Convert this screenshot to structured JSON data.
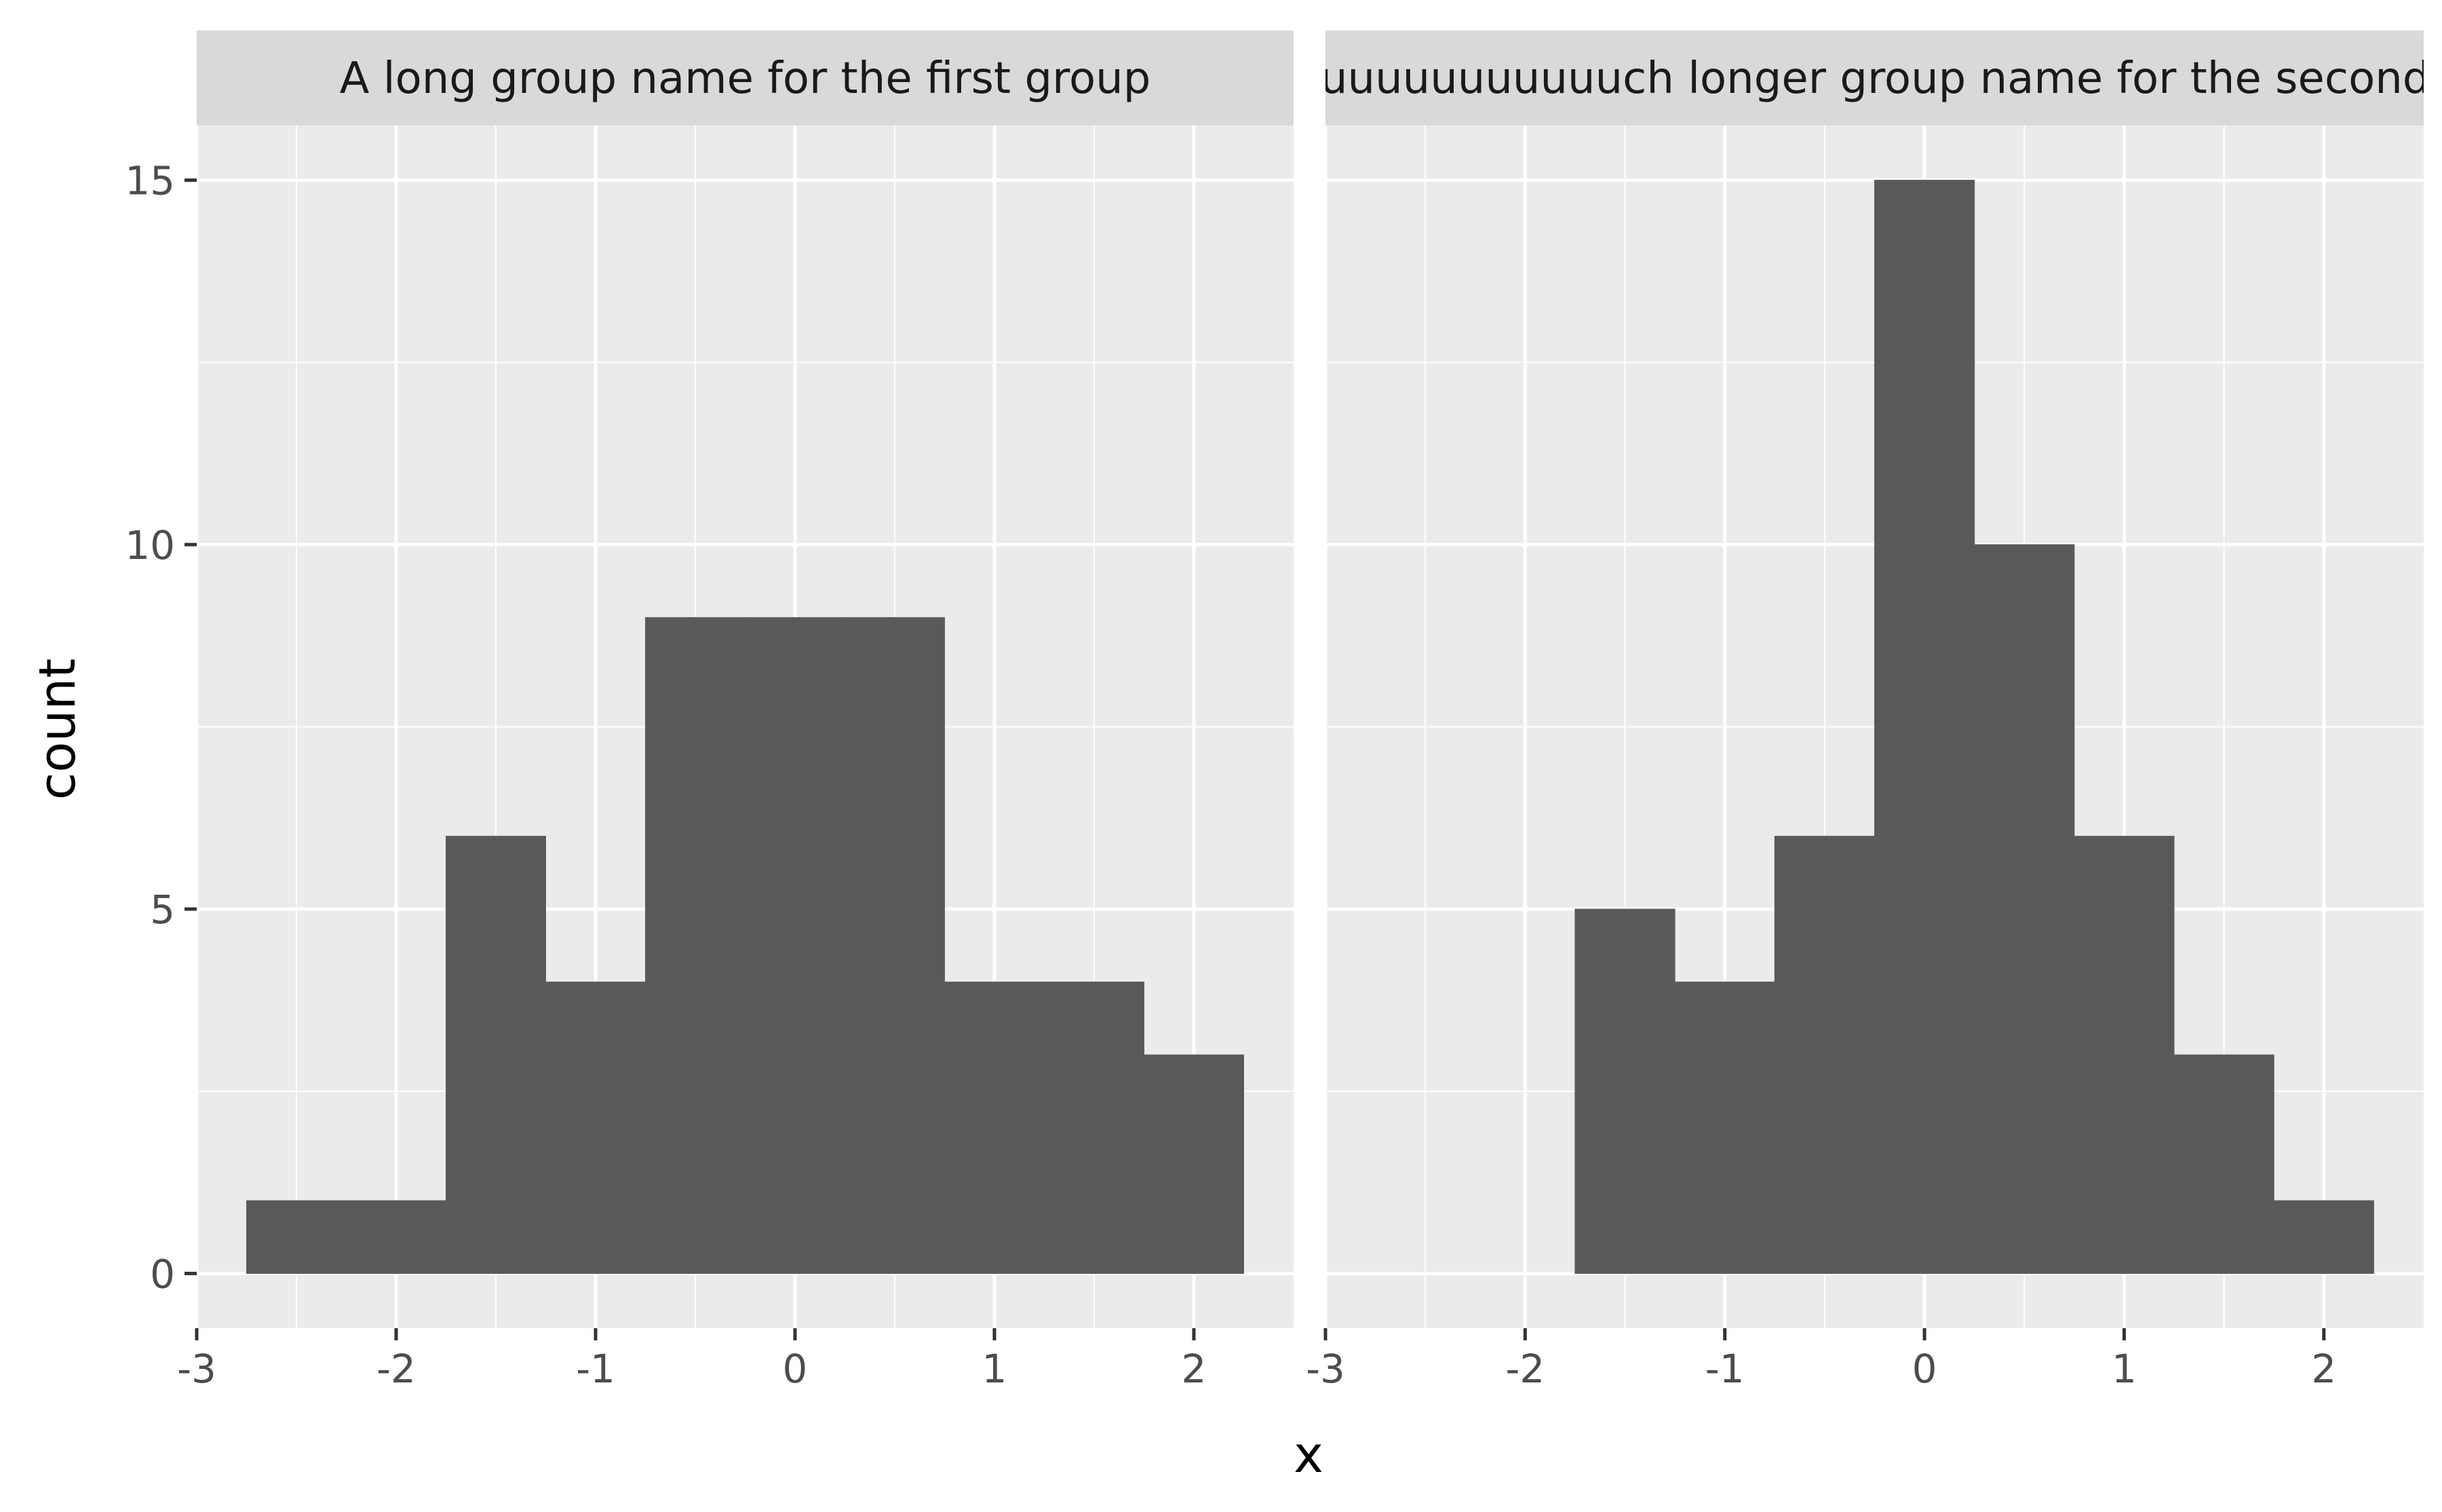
{
  "chart_data": {
    "type": "bar",
    "xlabel": "x",
    "ylabel": "count",
    "y_ticks": [
      0,
      5,
      10,
      15
    ],
    "y_tick_labels": [
      "0",
      "5",
      "10",
      "15"
    ],
    "x_ticks": [
      -3,
      -2,
      -1,
      0,
      1,
      2
    ],
    "x_tick_labels": [
      "-3",
      "-2",
      "-1",
      "0",
      "1",
      "2"
    ],
    "xlim": [
      -3,
      2.5
    ],
    "ylim": [
      -0.75,
      15.75
    ],
    "grid": true,
    "bin_width": 0.5,
    "bar_color": "#595959",
    "panel_bg": "#ebebeb",
    "strip_bg": "#d9d9d9",
    "facets": [
      {
        "strip_label": "A long group name for the first group",
        "bin_centers": [
          -2.5,
          -2.0,
          -1.5,
          -1.0,
          -0.5,
          0.0,
          0.5,
          1.0,
          1.5,
          2.0
        ],
        "counts": [
          1,
          1,
          6,
          4,
          9,
          9,
          9,
          4,
          4,
          3
        ]
      },
      {
        "strip_label": "A muuuuuuuuuuuuuch longer group name for the second group",
        "bin_centers": [
          -1.5,
          -1.0,
          -0.5,
          0.0,
          0.5,
          1.0,
          1.5,
          2.0
        ],
        "counts": [
          5,
          4,
          6,
          15,
          10,
          6,
          3,
          1
        ]
      }
    ]
  }
}
